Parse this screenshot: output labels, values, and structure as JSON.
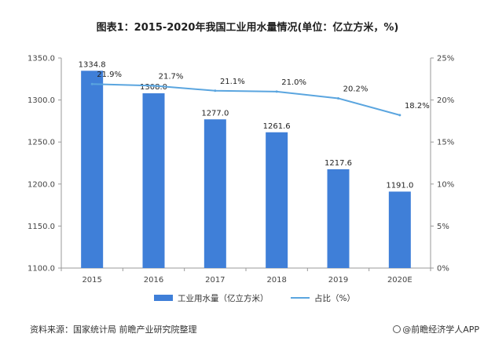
{
  "title": "图表1：2015-2020年我国工业用水量情况(单位：亿立方米，%)",
  "footer": {
    "source": "资料来源：国家统计局 前瞻产业研究院整理",
    "brand": "@前瞻经济学人APP"
  },
  "colors": {
    "bar": "#3f7fd8",
    "line": "#5aa5df",
    "axis": "#9a9a9a"
  },
  "chart_data": {
    "type": "bar",
    "categories": [
      "2015",
      "2016",
      "2017",
      "2018",
      "2019",
      "2020E"
    ],
    "series": [
      {
        "name": "工业用水量（亿立方米）",
        "type": "bar",
        "axis": "left",
        "values": [
          1334.8,
          1308.0,
          1277.0,
          1261.6,
          1217.6,
          1191.0
        ],
        "labels": [
          "1334.8",
          "1308.0",
          "1277.0",
          "1261.6",
          "1217.6",
          "1191.0"
        ]
      },
      {
        "name": "占比（%）",
        "type": "line",
        "axis": "right",
        "values": [
          21.9,
          21.7,
          21.1,
          21.0,
          20.2,
          18.2
        ],
        "labels": [
          "21.9%",
          "21.7%",
          "21.1%",
          "21.0%",
          "20.2%",
          "18.2%"
        ]
      }
    ],
    "y_left": {
      "range": [
        1100,
        1350
      ],
      "ticks": [
        "1100.0",
        "1150.0",
        "1200.0",
        "1250.0",
        "1300.0",
        "1350.0"
      ]
    },
    "y_right": {
      "range": [
        0,
        25
      ],
      "ticks": [
        "0%",
        "5%",
        "10%",
        "15%",
        "20%",
        "25%"
      ]
    },
    "grid": false,
    "legend_position": "bottom"
  }
}
